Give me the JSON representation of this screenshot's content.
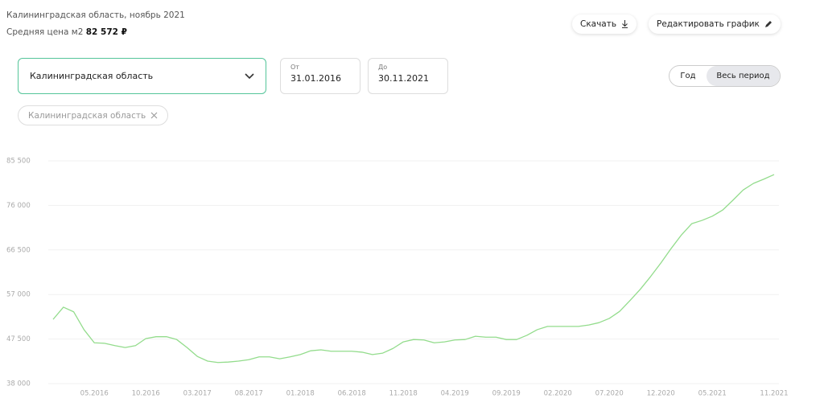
{
  "header": {
    "title": "Калининградская область, ноябрь 2021",
    "price_label": "Средняя цена м2",
    "price": "82 572 ₽"
  },
  "actions": [
    "Скачать",
    "Редактировать график"
  ],
  "filters": {
    "region": "Калининградская область",
    "from_label": "От",
    "from": "31.01.2016",
    "to_label": "До",
    "to": "30.11.2021"
  },
  "period": [
    "Год",
    "Весь период"
  ],
  "chip": "Калининградская область",
  "chart_data": {
    "type": "line",
    "categories": [
      null,
      null,
      null,
      null,
      "05.2016",
      null,
      null,
      null,
      null,
      "10.2016",
      null,
      null,
      null,
      null,
      "03.2017",
      null,
      null,
      null,
      null,
      "08.2017",
      null,
      null,
      null,
      null,
      "01.2018",
      null,
      null,
      null,
      null,
      "06.2018",
      null,
      null,
      null,
      null,
      "11.2018",
      null,
      null,
      null,
      null,
      "04.2019",
      null,
      null,
      null,
      null,
      "09.2019",
      null,
      null,
      null,
      null,
      "02.2020",
      null,
      null,
      null,
      null,
      "07.2020",
      null,
      null,
      null,
      null,
      "12.2020",
      null,
      null,
      null,
      null,
      "05.2021",
      null,
      null,
      null,
      null,
      null,
      "11.2021"
    ],
    "series": [
      {
        "name": "Калининградская область",
        "color": "#93dc8c",
        "values": [
          51700,
          54300,
          53300,
          49500,
          46700,
          46600,
          46100,
          45700,
          46100,
          47600,
          48000,
          48000,
          47400,
          45700,
          43800,
          42800,
          42500,
          42600,
          42800,
          43100,
          43700,
          43700,
          43300,
          43700,
          44200,
          45000,
          45200,
          44900,
          44900,
          44900,
          44700,
          44200,
          44500,
          45500,
          46900,
          47400,
          47300,
          46700,
          46900,
          47300,
          47400,
          48100,
          47900,
          47900,
          47400,
          47400,
          48300,
          49500,
          50200,
          50200,
          50200,
          50200,
          50500,
          51000,
          51900,
          53400,
          55700,
          58100,
          60800,
          63700,
          66800,
          69700,
          72100,
          72800,
          73700,
          75000,
          77100,
          79300,
          80700,
          81600,
          82572
        ]
      }
    ],
    "ylim": [
      38000,
      85500
    ],
    "yticks": [
      {
        "value": 38000,
        "label": "38 000"
      },
      {
        "value": 47500,
        "label": "47 500"
      },
      {
        "value": 57000,
        "label": "57 000"
      },
      {
        "value": 66500,
        "label": "66 500"
      },
      {
        "value": 76000,
        "label": "76 000"
      },
      {
        "value": 85500,
        "label": "85 500"
      }
    ],
    "grid": true
  }
}
